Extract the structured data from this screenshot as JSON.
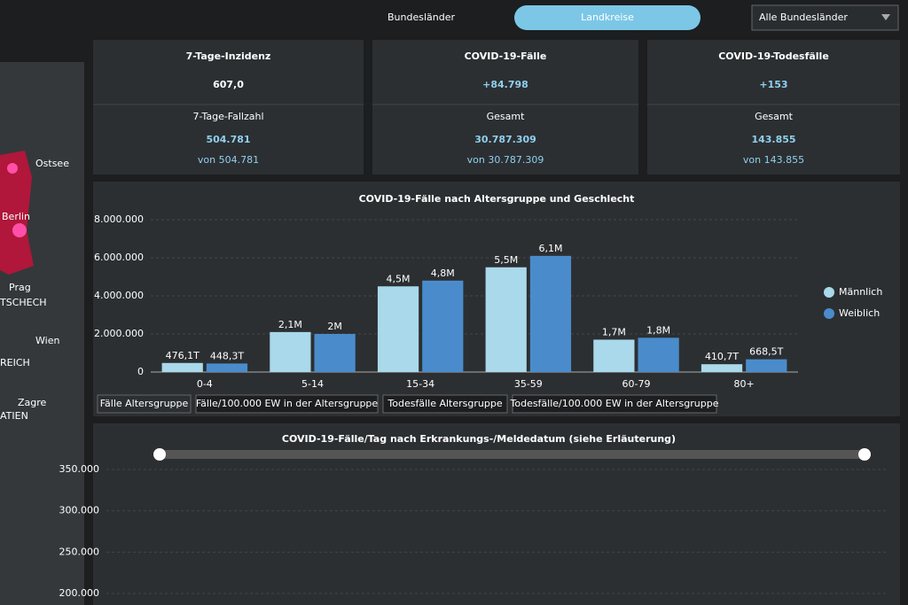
{
  "header": {
    "tabs": [
      "Bundesländer",
      "Landkreise"
    ],
    "dropdown": "Alle Bundesländer"
  },
  "map": {
    "labels": [
      "Ostsee",
      "Berlin",
      "Prag",
      "TSCHECH",
      "Wien",
      "REICH",
      "ATIEN",
      "Zagre"
    ]
  },
  "kpis": [
    {
      "title": "7-Tage-Inzidenz",
      "value": "607,0",
      "sub_label": "7-Tage-Fallzahl",
      "sub_value": "504.781",
      "sub_note": "von 504.781"
    },
    {
      "title": "COVID-19-Fälle",
      "value": "+84.798",
      "sub_label": "Gesamt",
      "sub_value": "30.787.309",
      "sub_note": "von 30.787.309"
    },
    {
      "title": "COVID-19-Todesfälle",
      "value": "+153",
      "sub_label": "Gesamt",
      "sub_value": "143.855",
      "sub_note": "von 143.855"
    }
  ],
  "chart_tabs": [
    "Fälle Altersgruppe",
    "Fälle/100.000 EW in der Altersgruppe",
    "Todesfälle Altersgruppe",
    "Todesfälle/100.000 EW in der Altersgruppe"
  ],
  "chart_data": [
    {
      "type": "bar",
      "title": "COVID-19-Fälle nach Altersgruppe und Geschlecht",
      "categories": [
        "0-4",
        "5-14",
        "15-34",
        "35-59",
        "60-79",
        "80+"
      ],
      "series": [
        {
          "name": "Männlich",
          "color": "#a9d9ea",
          "values": [
            476100,
            2100000,
            4500000,
            5500000,
            1700000,
            410700
          ],
          "value_labels": [
            "476,1T",
            "2,1M",
            "4,5M",
            "5,5M",
            "1,7M",
            "410,7T"
          ]
        },
        {
          "name": "Weiblich",
          "color": "#4a8ccb",
          "values": [
            448300,
            2000000,
            4800000,
            6100000,
            1800000,
            668500
          ],
          "value_labels": [
            "448,3T",
            "2M",
            "4,8M",
            "6,1M",
            "1,8M",
            "668,5T"
          ]
        }
      ],
      "ylim": [
        0,
        8000000
      ],
      "yticks": [
        0,
        {
          "value": 2000000,
          "label": "2.000.000"
        },
        {
          "value": 4000000,
          "label": "4.000.000"
        },
        {
          "value": 6000000,
          "label": "6.000.000"
        },
        {
          "value": 8000000,
          "label": "8.000.000"
        }
      ],
      "grid": true,
      "legend": "right"
    },
    {
      "type": "line",
      "title": "COVID-19-Fälle/Tag nach Erkrankungs-/Meldedatum (siehe Erläuterung)",
      "ylim": [
        200000,
        350000
      ],
      "yticks": [
        {
          "value": 200000,
          "label": "200.000"
        },
        {
          "value": 250000,
          "label": "250.000"
        },
        {
          "value": 300000,
          "label": "300.000"
        },
        {
          "value": 350000,
          "label": "350.000"
        }
      ],
      "grid": true
    }
  ]
}
